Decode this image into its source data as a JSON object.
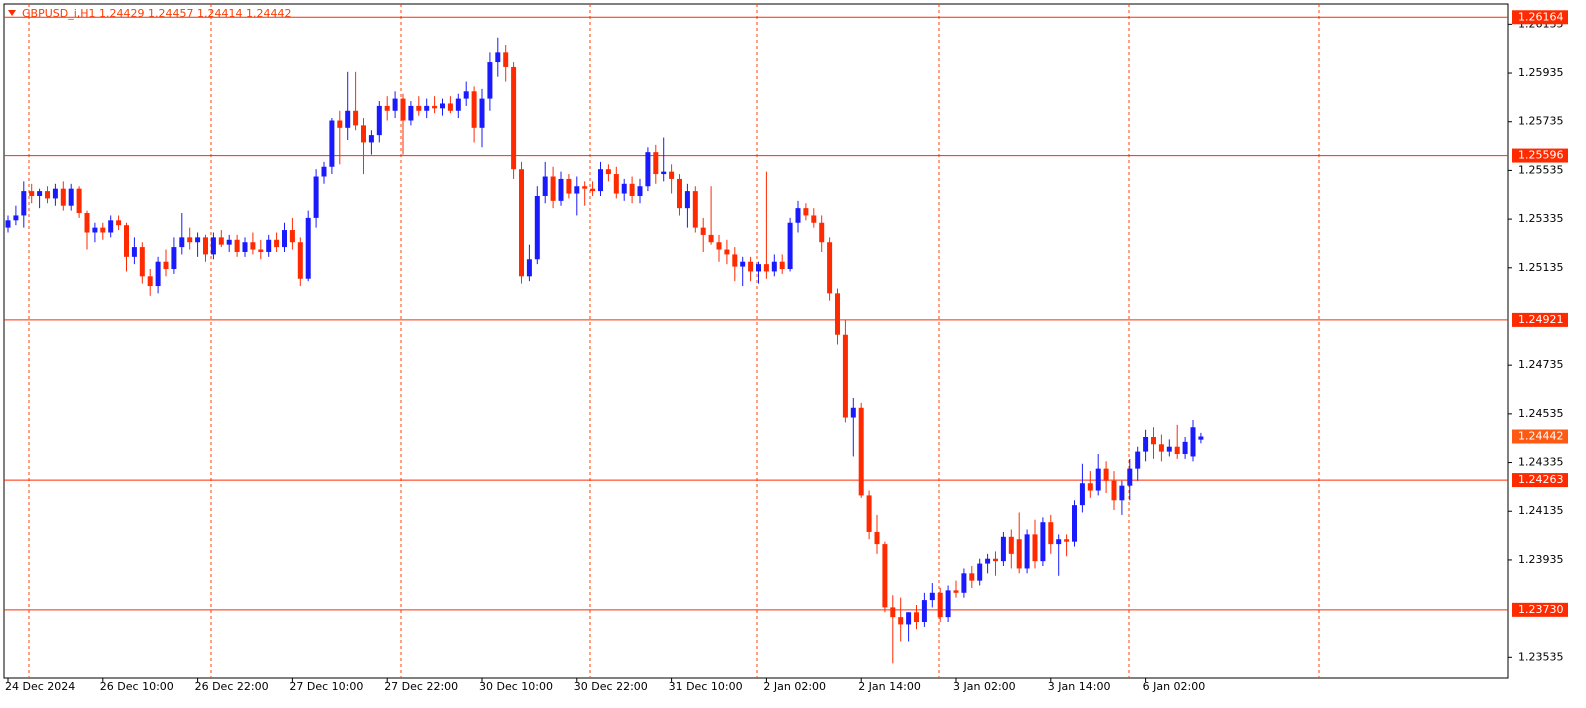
{
  "chart_data": {
    "type": "candlestick",
    "title": "GBPUSD_i,H1  1.24429 1.24457 1.24414 1.24442",
    "up_color": "#1a1aff",
    "down_color": "#ff2a00",
    "level_color": "#ff2a00",
    "current_color": "#ff5a14",
    "ylim": [
      1.2345,
      1.26235
    ],
    "yticks": [
      1.26135,
      1.25935,
      1.25735,
      1.25535,
      1.25335,
      1.25135,
      1.24735,
      1.24535,
      1.24335,
      1.24135,
      1.23935,
      1.23535
    ],
    "levels": [
      1.26164,
      1.25596,
      1.24921,
      1.24263,
      {
        "value": 1.2373,
        "label": "1.23730"
      }
    ],
    "current_price": 1.24442,
    "categories": [
      "24 Dec 2024",
      null,
      null,
      null,
      null,
      null,
      null,
      null,
      null,
      null,
      null,
      null,
      "26 Dec 10:00",
      null,
      null,
      null,
      null,
      null,
      null,
      null,
      null,
      null,
      null,
      null,
      "26 Dec 22:00",
      null,
      null,
      null,
      null,
      null,
      null,
      null,
      null,
      null,
      null,
      null,
      "27 Dec 10:00",
      null,
      null,
      null,
      null,
      null,
      null,
      null,
      null,
      null,
      null,
      null,
      "27 Dec 22:00",
      null,
      null,
      null,
      null,
      null,
      null,
      null,
      null,
      null,
      null,
      null,
      "30 Dec 10:00",
      null,
      null,
      null,
      null,
      null,
      null,
      null,
      null,
      null,
      null,
      null,
      "30 Dec 22:00",
      null,
      null,
      null,
      null,
      null,
      null,
      null,
      null,
      null,
      null,
      null,
      "31 Dec 10:00",
      null,
      null,
      null,
      null,
      null,
      null,
      null,
      null,
      null,
      null,
      null,
      "2 Jan 02:00",
      null,
      null,
      null,
      null,
      null,
      null,
      null,
      null,
      null,
      null,
      null,
      "2 Jan 14:00",
      null,
      null,
      null,
      null,
      null,
      null,
      null,
      null,
      null,
      null,
      null,
      "3 Jan 02:00",
      null,
      null,
      null,
      null,
      null,
      null,
      null,
      null,
      null,
      null,
      null,
      "3 Jan 14:00",
      null,
      null,
      null,
      null,
      null,
      null,
      null,
      null,
      null,
      null,
      null,
      "6 Jan 02:00",
      null,
      null,
      null,
      null,
      null,
      null,
      null
    ],
    "candles": [
      [
        1.253,
        1.2535,
        1.2528,
        1.2533
      ],
      [
        1.2533,
        1.2539,
        1.2531,
        1.2535
      ],
      [
        1.2535,
        1.2549,
        1.253,
        1.2545
      ],
      [
        1.2545,
        1.2548,
        1.254,
        1.2543
      ],
      [
        1.2543,
        1.2546,
        1.2538,
        1.2545
      ],
      [
        1.2545,
        1.2547,
        1.254,
        1.2542
      ],
      [
        1.2542,
        1.2548,
        1.2539,
        1.2546
      ],
      [
        1.2546,
        1.2549,
        1.2537,
        1.2539
      ],
      [
        1.2539,
        1.2548,
        1.2537,
        1.2546
      ],
      [
        1.2546,
        1.2547,
        1.2534,
        1.2536
      ],
      [
        1.2536,
        1.2537,
        1.2521,
        1.2528
      ],
      [
        1.2528,
        1.2532,
        1.2524,
        1.253
      ],
      [
        1.253,
        1.2532,
        1.2525,
        1.2528
      ],
      [
        1.2528,
        1.2535,
        1.2526,
        1.2533
      ],
      [
        1.2533,
        1.2535,
        1.2529,
        1.2531
      ],
      [
        1.2531,
        1.2532,
        1.2512,
        1.2518
      ],
      [
        1.2518,
        1.2526,
        1.2515,
        1.2522
      ],
      [
        1.2522,
        1.2524,
        1.2507,
        1.251
      ],
      [
        1.251,
        1.2513,
        1.2502,
        1.2506
      ],
      [
        1.2506,
        1.2518,
        1.2503,
        1.2516
      ],
      [
        1.2516,
        1.2521,
        1.251,
        1.2513
      ],
      [
        1.2513,
        1.2526,
        1.2511,
        1.2522
      ],
      [
        1.2522,
        1.2536,
        1.2519,
        1.2526
      ],
      [
        1.2526,
        1.253,
        1.2521,
        1.2524
      ],
      [
        1.2524,
        1.2528,
        1.2518,
        1.2526
      ],
      [
        1.2526,
        1.2527,
        1.2516,
        1.2519
      ],
      [
        1.2519,
        1.2528,
        1.2517,
        1.2526
      ],
      [
        1.2526,
        1.2529,
        1.2522,
        1.2523
      ],
      [
        1.2523,
        1.2527,
        1.252,
        1.2525
      ],
      [
        1.2525,
        1.2527,
        1.2518,
        1.252
      ],
      [
        1.252,
        1.2526,
        1.2518,
        1.2524
      ],
      [
        1.2524,
        1.2528,
        1.2519,
        1.2521
      ],
      [
        1.2521,
        1.2525,
        1.2517,
        1.252
      ],
      [
        1.252,
        1.2527,
        1.2518,
        1.2525
      ],
      [
        1.2525,
        1.2528,
        1.252,
        1.2522
      ],
      [
        1.2522,
        1.2532,
        1.252,
        1.2529
      ],
      [
        1.2529,
        1.2534,
        1.2521,
        1.2524
      ],
      [
        1.2524,
        1.2526,
        1.2506,
        1.2509
      ],
      [
        1.2509,
        1.2537,
        1.2508,
        1.2534
      ],
      [
        1.2534,
        1.2554,
        1.253,
        1.2551
      ],
      [
        1.2551,
        1.2557,
        1.2548,
        1.2555
      ],
      [
        1.2555,
        1.2575,
        1.2552,
        1.2574
      ],
      [
        1.2574,
        1.2578,
        1.2556,
        1.2571
      ],
      [
        1.2571,
        1.2594,
        1.2566,
        1.2578
      ],
      [
        1.2578,
        1.2594,
        1.257,
        1.2572
      ],
      [
        1.2572,
        1.2575,
        1.2552,
        1.2565
      ],
      [
        1.2565,
        1.257,
        1.256,
        1.2568
      ],
      [
        1.2568,
        1.2582,
        1.2565,
        1.258
      ],
      [
        1.258,
        1.2584,
        1.2574,
        1.2578
      ],
      [
        1.2578,
        1.2586,
        1.2575,
        1.2583
      ],
      [
        1.2583,
        1.2585,
        1.256,
        1.2574
      ],
      [
        1.2574,
        1.2582,
        1.2572,
        1.258
      ],
      [
        1.258,
        1.2584,
        1.2576,
        1.2578
      ],
      [
        1.2578,
        1.2583,
        1.2575,
        1.258
      ],
      [
        1.258,
        1.2584,
        1.2577,
        1.2579
      ],
      [
        1.2579,
        1.2583,
        1.2576,
        1.2581
      ],
      [
        1.2581,
        1.2584,
        1.2577,
        1.2578
      ],
      [
        1.2578,
        1.2585,
        1.2575,
        1.2583
      ],
      [
        1.2583,
        1.259,
        1.258,
        1.2586
      ],
      [
        1.2586,
        1.2588,
        1.2565,
        1.2571
      ],
      [
        1.2571,
        1.2587,
        1.2563,
        1.2583
      ],
      [
        1.2583,
        1.2602,
        1.2578,
        1.2598
      ],
      [
        1.2598,
        1.2608,
        1.2592,
        1.2602
      ],
      [
        1.2602,
        1.2605,
        1.259,
        1.2596
      ],
      [
        1.2596,
        1.2598,
        1.255,
        1.2554
      ],
      [
        1.2554,
        1.2557,
        1.2507,
        1.251
      ],
      [
        1.251,
        1.2523,
        1.2508,
        1.2517
      ],
      [
        1.2517,
        1.2547,
        1.2515,
        1.2543
      ],
      [
        1.2543,
        1.2557,
        1.254,
        1.2551
      ],
      [
        1.2551,
        1.2555,
        1.2538,
        1.2541
      ],
      [
        1.2541,
        1.2553,
        1.2539,
        1.255
      ],
      [
        1.255,
        1.2552,
        1.2542,
        1.2544
      ],
      [
        1.2544,
        1.2551,
        1.2535,
        1.2547
      ],
      [
        1.2547,
        1.2549,
        1.2539,
        1.2546
      ],
      [
        1.2546,
        1.2549,
        1.2543,
        1.2545
      ],
      [
        1.2545,
        1.2557,
        1.2543,
        1.2554
      ],
      [
        1.2554,
        1.2556,
        1.2549,
        1.2552
      ],
      [
        1.2552,
        1.2555,
        1.2542,
        1.2544
      ],
      [
        1.2544,
        1.255,
        1.2541,
        1.2548
      ],
      [
        1.2548,
        1.2551,
        1.254,
        1.2543
      ],
      [
        1.2543,
        1.255,
        1.254,
        1.2547
      ],
      [
        1.2547,
        1.2563,
        1.2545,
        1.2561
      ],
      [
        1.2561,
        1.2564,
        1.2548,
        1.2552
      ],
      [
        1.2552,
        1.2567,
        1.2549,
        1.2553
      ],
      [
        1.2553,
        1.2556,
        1.2544,
        1.255
      ],
      [
        1.255,
        1.2552,
        1.2535,
        1.2538
      ],
      [
        1.2538,
        1.2548,
        1.253,
        1.2545
      ],
      [
        1.2545,
        1.2547,
        1.2528,
        1.253
      ],
      [
        1.253,
        1.2534,
        1.252,
        1.2527
      ],
      [
        1.2527,
        1.2547,
        1.2523,
        1.2524
      ],
      [
        1.2524,
        1.2527,
        1.2516,
        1.2521
      ],
      [
        1.2521,
        1.2525,
        1.2515,
        1.2519
      ],
      [
        1.2519,
        1.2522,
        1.2508,
        1.2514
      ],
      [
        1.2514,
        1.2518,
        1.2506,
        1.2516
      ],
      [
        1.2516,
        1.2518,
        1.2508,
        1.2512
      ],
      [
        1.2512,
        1.2516,
        1.2507,
        1.2515
      ],
      [
        1.2515,
        1.2553,
        1.2509,
        1.2512
      ],
      [
        1.2512,
        1.2519,
        1.251,
        1.2516
      ],
      [
        1.2516,
        1.2519,
        1.2511,
        1.2513
      ],
      [
        1.2513,
        1.2534,
        1.2512,
        1.2532
      ],
      [
        1.2532,
        1.2541,
        1.2528,
        1.2538
      ],
      [
        1.2538,
        1.254,
        1.2533,
        1.2535
      ],
      [
        1.2535,
        1.2538,
        1.253,
        1.2532
      ],
      [
        1.2532,
        1.2535,
        1.252,
        1.2524
      ],
      [
        1.2524,
        1.2526,
        1.25,
        1.2503
      ],
      [
        1.2503,
        1.2505,
        1.2482,
        1.2486
      ],
      [
        1.2486,
        1.2492,
        1.245,
        1.2452
      ],
      [
        1.2452,
        1.246,
        1.2436,
        1.2456
      ],
      [
        1.2456,
        1.2458,
        1.2419,
        1.242
      ],
      [
        1.242,
        1.2422,
        1.2402,
        1.2405
      ],
      [
        1.2405,
        1.2412,
        1.2396,
        1.24
      ],
      [
        1.24,
        1.2401,
        1.2372,
        1.2374
      ],
      [
        1.2374,
        1.2379,
        1.2351,
        1.237
      ],
      [
        1.237,
        1.2378,
        1.236,
        1.2367
      ],
      [
        1.2367,
        1.2372,
        1.236,
        1.2372
      ],
      [
        1.2372,
        1.2375,
        1.2365,
        1.2368
      ],
      [
        1.2368,
        1.238,
        1.2366,
        1.2377
      ],
      [
        1.2377,
        1.2384,
        1.2374,
        1.238
      ],
      [
        1.238,
        1.2382,
        1.2368,
        1.237
      ],
      [
        1.237,
        1.2383,
        1.2368,
        1.2381
      ],
      [
        1.2381,
        1.2385,
        1.2378,
        1.238
      ],
      [
        1.238,
        1.239,
        1.2378,
        1.2388
      ],
      [
        1.2388,
        1.2391,
        1.2382,
        1.2385
      ],
      [
        1.2385,
        1.2394,
        1.2383,
        1.2392
      ],
      [
        1.2392,
        1.2396,
        1.2388,
        1.2394
      ],
      [
        1.2394,
        1.2397,
        1.2387,
        1.2393
      ],
      [
        1.2393,
        1.2405,
        1.2391,
        1.2403
      ],
      [
        1.2403,
        1.2406,
        1.239,
        1.2396
      ],
      [
        1.2402,
        1.2413,
        1.2388,
        1.239
      ],
      [
        1.239,
        1.2406,
        1.2388,
        1.2404
      ],
      [
        1.2404,
        1.241,
        1.239,
        1.2393
      ],
      [
        1.2393,
        1.2411,
        1.2391,
        1.2409
      ],
      [
        1.2409,
        1.2412,
        1.2396,
        1.24
      ],
      [
        1.24,
        1.2404,
        1.2387,
        1.2402
      ],
      [
        1.2402,
        1.2404,
        1.2395,
        1.2401
      ],
      [
        1.2401,
        1.2418,
        1.2399,
        1.2416
      ],
      [
        1.2416,
        1.2433,
        1.2413,
        1.2425
      ],
      [
        1.2425,
        1.243,
        1.2419,
        1.2422
      ],
      [
        1.2422,
        1.2437,
        1.242,
        1.2431
      ],
      [
        1.2431,
        1.2434,
        1.2421,
        1.2426
      ],
      [
        1.2426,
        1.243,
        1.2414,
        1.2418
      ],
      [
        1.2418,
        1.2426,
        1.2412,
        1.2424
      ],
      [
        1.2424,
        1.2435,
        1.2418,
        1.2431
      ],
      [
        1.2431,
        1.244,
        1.2426,
        1.2438
      ],
      [
        1.2438,
        1.2447,
        1.2434,
        1.2444
      ],
      [
        1.2444,
        1.2448,
        1.2435,
        1.2441
      ],
      [
        1.2441,
        1.2445,
        1.2434,
        1.2438
      ],
      [
        1.2438,
        1.2443,
        1.2436,
        1.244
      ],
      [
        1.244,
        1.2449,
        1.2435,
        1.2437
      ],
      [
        1.2437,
        1.2444,
        1.2435,
        1.2442
      ],
      [
        1.2436,
        1.2451,
        1.2434,
        1.2448
      ],
      [
        1.24429,
        1.24457,
        1.24414,
        1.24442
      ]
    ]
  }
}
